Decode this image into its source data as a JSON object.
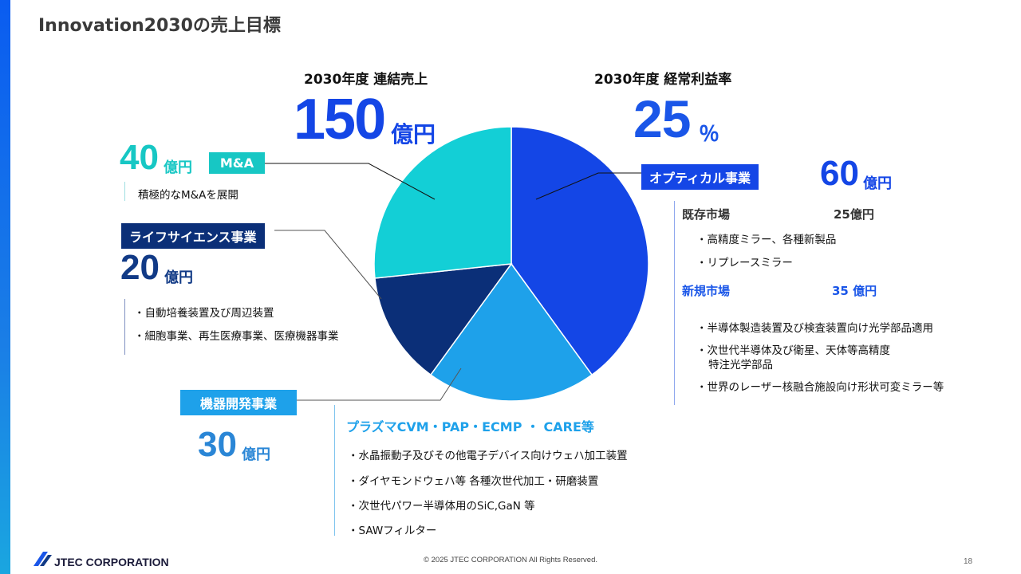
{
  "page": {
    "title": "Innovation2030の売上目標",
    "page_number": "18",
    "copyright": "© 2025 JTEC CORPORATION All Rights Reserved.",
    "logo": "JTEC CORPORATION"
  },
  "colors": {
    "optical": "#1446e6",
    "equipment": "#1ea1ea",
    "life": "#0b2f78",
    "ma": "#13cfd6",
    "navy": "#113a86",
    "bright": "#1a56e8",
    "teal": "#17c7c4",
    "mid": "#2a86d6"
  },
  "kpi": {
    "sales_label": "2030年度 連結売上",
    "sales_value": "150",
    "sales_unit": "億円",
    "margin_label": "2030年度 経常利益率",
    "margin_value": "25",
    "margin_unit": "％"
  },
  "segments": {
    "ma": {
      "tag": "M&A",
      "value": "40",
      "unit": "億円",
      "bullets": [
        "積極的なM&Aを展開"
      ]
    },
    "life": {
      "tag": "ライフサイエンス事業",
      "value": "20",
      "unit": "億円",
      "bullets": [
        "・自動培養装置及び周辺装置",
        "・細胞事業、再生医療事業、医療機器事業"
      ]
    },
    "equipment": {
      "tag": "機器開発事業",
      "value": "30",
      "unit": "億円",
      "subtitle": "プラズマCVM・PAP・ECMP ・ CARE等",
      "bullets": [
        "・水晶振動子及びその他電子デバイス向けウェハ加工装置",
        "・ダイヤモンドウェハ等 各種次世代加工・研磨装置",
        "・次世代パワー半導体用のSiC,GaN 等",
        "・SAWフィルター"
      ]
    },
    "optical": {
      "tag": "オプティカル事業",
      "value": "60",
      "unit": "億円",
      "existing_label": "既存市場",
      "existing_value": "25億円",
      "existing_bullets": [
        "・高精度ミラー、各種新製品",
        "・リプレースミラー"
      ],
      "new_label": "新規市場",
      "new_value": "35 億円",
      "new_bullets": [
        "・半導体製造装置及び検査装置向け光学部品適用",
        "・次世代半導体及び衛星、天体等高精度",
        "特注光学部品",
        "・世界のレーザー核融合施設向け形状可変ミラー等"
      ]
    }
  },
  "chart_data": {
    "type": "pie",
    "categories": [
      "オプティカル事業",
      "機器開発事業",
      "ライフサイエンス事業",
      "M&A"
    ],
    "values": [
      60,
      30,
      20,
      40
    ],
    "unit": "億円",
    "total": 150
  }
}
